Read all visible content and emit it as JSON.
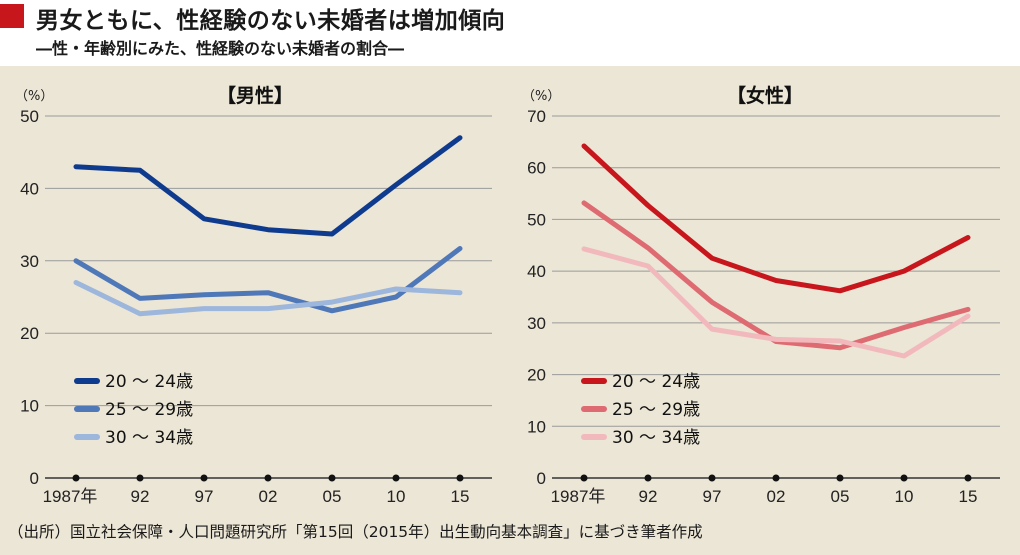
{
  "header": {
    "title": "男女ともに、性経験のない未婚者は増加傾向",
    "subtitle": "―性・年齢別にみた、性経験のない未婚者の割合―"
  },
  "footnote": "（出所）国立社会保障・人口問題研究所「第15回（2015年）出生動向基本調査」に基づき筆者作成",
  "colors": {
    "title_mark": "#c8161d",
    "background": "#ece6d6"
  },
  "chart_data": [
    {
      "type": "line",
      "title": "【男性】",
      "y_unit": "（%）",
      "categories": [
        "1987年",
        "92",
        "97",
        "02",
        "05",
        "10",
        "15"
      ],
      "ylim": [
        0,
        50
      ],
      "yticks": [
        0,
        10,
        20,
        30,
        40,
        50
      ],
      "grid": true,
      "legend_position": "bottom-left",
      "series": [
        {
          "name": "20 ～ 24歳",
          "color": "#0f3b8f",
          "values": [
            43.0,
            42.5,
            35.8,
            34.3,
            33.7,
            40.5,
            47.0
          ]
        },
        {
          "name": "25 ～ 29歳",
          "color": "#4f78b9",
          "values": [
            30.0,
            24.8,
            25.3,
            25.6,
            23.1,
            25.0,
            31.7
          ]
        },
        {
          "name": "30 ～ 34歳",
          "color": "#9db6dc",
          "values": [
            27.0,
            22.7,
            23.4,
            23.4,
            24.3,
            26.1,
            25.6
          ]
        }
      ]
    },
    {
      "type": "line",
      "title": "【女性】",
      "y_unit": "（%）",
      "categories": [
        "1987年",
        "92",
        "97",
        "02",
        "05",
        "10",
        "15"
      ],
      "ylim": [
        0,
        70
      ],
      "yticks": [
        0,
        10,
        20,
        30,
        40,
        50,
        60,
        70
      ],
      "grid": true,
      "legend_position": "bottom-left",
      "series": [
        {
          "name": "20 ～ 24歳",
          "color": "#c8161d",
          "values": [
            64.2,
            52.7,
            42.5,
            38.2,
            36.2,
            40.0,
            46.5
          ]
        },
        {
          "name": "25 ～ 29歳",
          "color": "#de6b72",
          "values": [
            53.2,
            44.5,
            34.0,
            26.4,
            25.2,
            29.1,
            32.6
          ]
        },
        {
          "name": "30 ～ 34歳",
          "color": "#f2b9bd",
          "values": [
            44.3,
            41.0,
            28.8,
            26.8,
            26.5,
            23.6,
            31.3
          ]
        }
      ]
    }
  ]
}
